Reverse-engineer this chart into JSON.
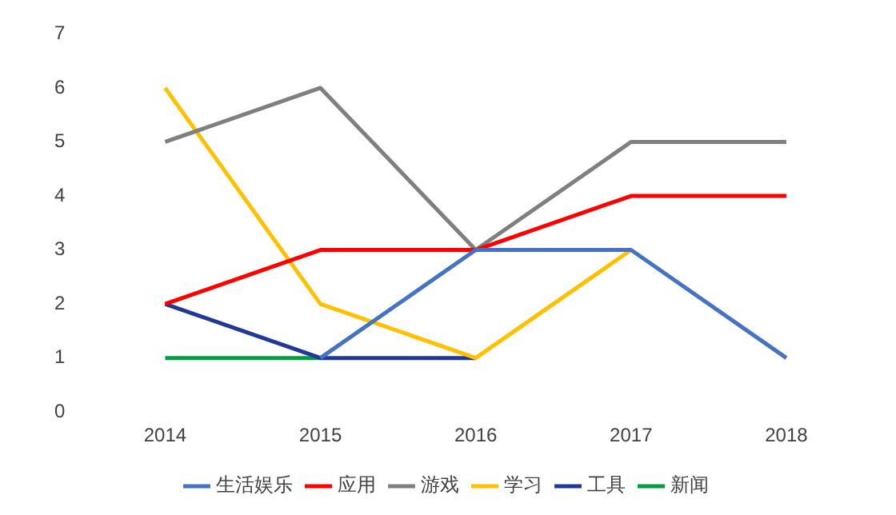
{
  "chart_data": {
    "type": "line",
    "categories": [
      "2014",
      "2015",
      "2016",
      "2017",
      "2018"
    ],
    "series": [
      {
        "name": "生活娱乐",
        "color": "#4472c4",
        "values": [
          null,
          1,
          3,
          3,
          1
        ]
      },
      {
        "name": "应用",
        "color": "#ff0000",
        "values": [
          2,
          3,
          3,
          4,
          4
        ]
      },
      {
        "name": "游戏",
        "color": "#7f7f7f",
        "values": [
          5,
          6,
          3,
          5,
          5
        ]
      },
      {
        "name": "学习",
        "color": "#ffc000",
        "values": [
          6,
          2,
          1,
          3,
          null
        ]
      },
      {
        "name": "工具",
        "color": "#203897",
        "values": [
          2,
          1,
          1,
          null,
          null
        ]
      },
      {
        "name": "新闻",
        "color": "#00a040",
        "values": [
          1,
          1,
          null,
          null,
          null
        ]
      }
    ],
    "ylim": [
      0,
      7
    ],
    "yticks": [
      0,
      1,
      2,
      3,
      4,
      5,
      6,
      7
    ],
    "grid": false,
    "legend": "bottom",
    "marker": "none",
    "line_style": "solid"
  }
}
